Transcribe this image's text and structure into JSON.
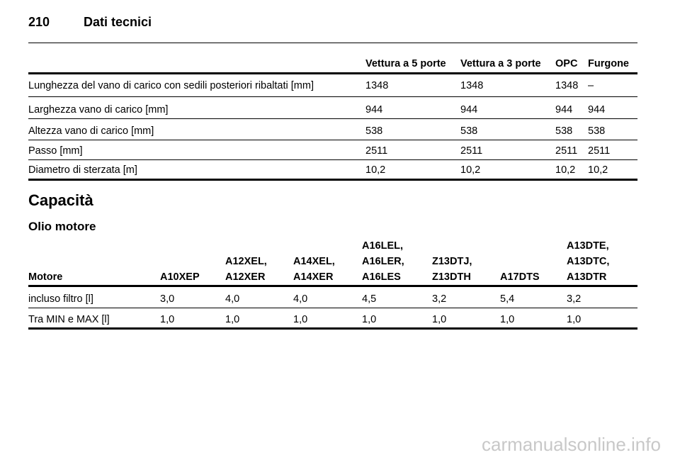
{
  "header": {
    "page_number": "210",
    "title": "Dati tecnici"
  },
  "table1": {
    "columns": [
      "",
      "Vettura a 5 porte",
      "Vettura a 3 porte",
      "OPC",
      "Furgone"
    ],
    "rows": [
      [
        "Lunghezza del vano di carico con sedili posteriori ribaltati [mm]",
        "1348",
        "1348",
        "1348",
        "–"
      ],
      [
        "Larghezza vano di carico [mm]",
        "944",
        "944",
        "944",
        "944"
      ],
      [
        "Altezza vano di carico [mm]",
        "538",
        "538",
        "538",
        "538"
      ],
      [
        "Passo [mm]",
        "2511",
        "2511",
        "2511",
        "2511"
      ],
      [
        "Diametro di sterzata [m]",
        "10,2",
        "10,2",
        "10,2",
        "10,2"
      ]
    ]
  },
  "section_title": "Capacità",
  "subsection_title": "Olio motore",
  "table2": {
    "columns": [
      [
        "Motore"
      ],
      [
        "A10XEP"
      ],
      [
        "A12XEL,",
        "A12XER"
      ],
      [
        "A14XEL,",
        "A14XER"
      ],
      [
        "A16LEL,",
        "A16LER,",
        "A16LES"
      ],
      [
        "Z13DTJ,",
        "Z13DTH"
      ],
      [
        "A17DTS"
      ],
      [
        "A13DTE,",
        "A13DTC,",
        "A13DTR"
      ]
    ],
    "rows": [
      [
        "incluso filtro [l]",
        "3,0",
        "4,0",
        "4,0",
        "4,5",
        "3,2",
        "5,4",
        "3,2"
      ],
      [
        "Tra MIN e MAX [l]",
        "1,0",
        "1,0",
        "1,0",
        "1,0",
        "1,0",
        "1,0",
        "1,0"
      ]
    ]
  },
  "watermark": "carmanualsonline.info"
}
